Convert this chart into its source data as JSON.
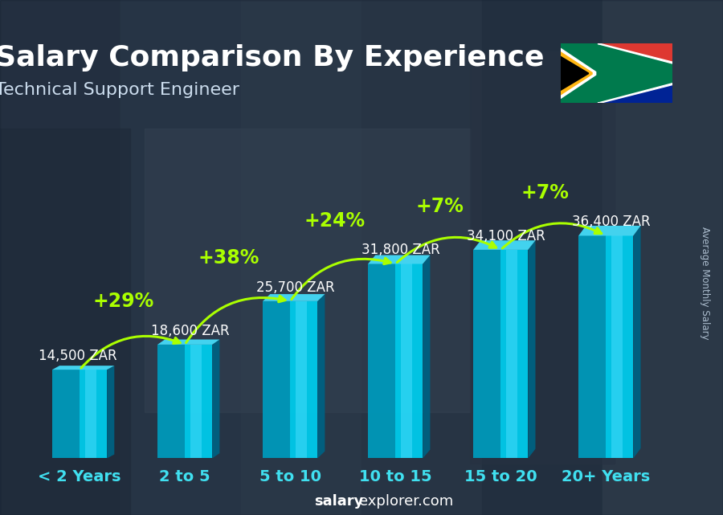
{
  "title": "Salary Comparison By Experience",
  "subtitle": "Technical Support Engineer",
  "categories": [
    "< 2 Years",
    "2 to 5",
    "5 to 10",
    "10 to 15",
    "15 to 20",
    "20+ Years"
  ],
  "values": [
    14500,
    18600,
    25700,
    31800,
    34100,
    36400
  ],
  "value_labels": [
    "14,500 ZAR",
    "18,600 ZAR",
    "25,700 ZAR",
    "31,800 ZAR",
    "34,100 ZAR",
    "36,400 ZAR"
  ],
  "pct_labels": [
    "+29%",
    "+38%",
    "+24%",
    "+7%",
    "+7%"
  ],
  "bar_front_color": "#00bcd4",
  "bar_left_color": "#0097b2",
  "bar_right_color": "#006080",
  "bar_top_color": "#4dd9f0",
  "ylabel": "Average Monthly Salary",
  "footer_normal": "explorer.com",
  "footer_bold": "salary",
  "bg_color": "#4a5a6a",
  "overlay_color": "#1a2535",
  "overlay_alpha": 0.45,
  "text_color": "#ffffff",
  "pct_color": "#aaff00",
  "value_color": "#ffffff",
  "xlabel_color": "#40e0f0",
  "title_fontsize": 26,
  "subtitle_fontsize": 16,
  "value_fontsize": 12,
  "pct_fontsize": 17,
  "xlabel_fontsize": 14,
  "footer_fontsize": 13
}
